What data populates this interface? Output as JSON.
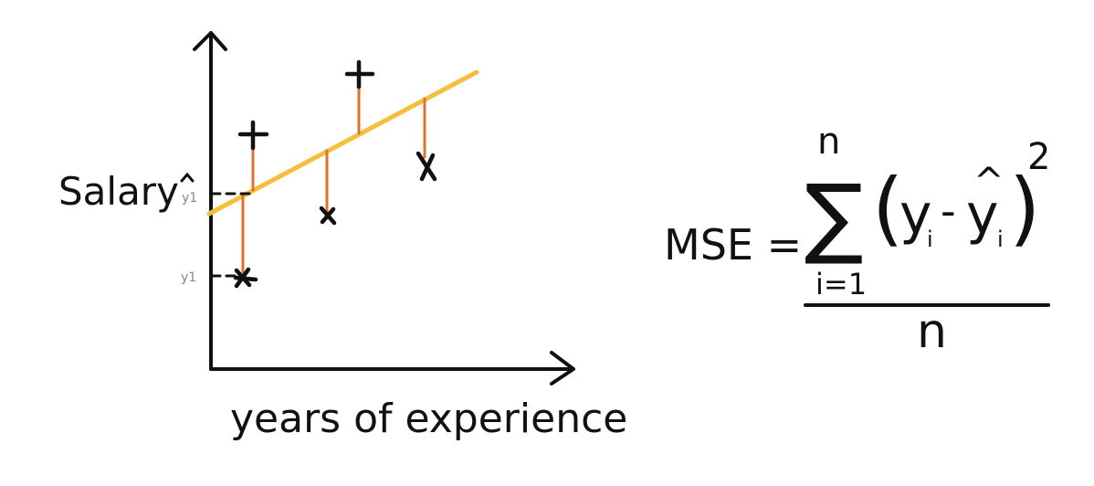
{
  "diagram": {
    "y_axis_label": "Salary",
    "x_axis_label": "years of experience",
    "y_hat_tick": "y1",
    "y_tick": "y1"
  },
  "formula": {
    "lhs": "MSE =",
    "sum_upper": "n",
    "sum_lower": "i=1",
    "sum_symbol": "∑",
    "body_open": "(",
    "y": "y",
    "y_sub": "i",
    "minus": "-",
    "yhat": "y",
    "hat": "^",
    "yhat_sub": "i",
    "body_close": ")",
    "exponent": "2",
    "denominator": "n"
  },
  "colors": {
    "ink": "#111111",
    "regression_line": "#f5bf3d",
    "residual": "#e0702a",
    "tick_label": "#888888"
  },
  "points": [
    {
      "marker": "x",
      "kind": "below-line"
    },
    {
      "marker": "+",
      "kind": "above-line"
    },
    {
      "marker": "x",
      "kind": "below-line"
    },
    {
      "marker": "+",
      "kind": "above-line"
    },
    {
      "marker": "x",
      "kind": "below-line"
    }
  ]
}
